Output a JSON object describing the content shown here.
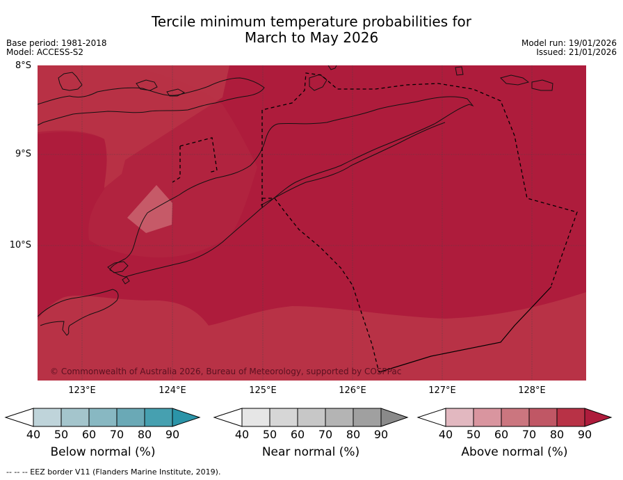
{
  "title": {
    "line1": "Tercile minimum temperature probabilities for",
    "line2": "March to May 2026"
  },
  "meta": {
    "base_period": "Base period: 1981-2018",
    "model": "Model: ACCESS-S2",
    "model_run": "Model run: 19/01/2026",
    "issued": "Issued: 21/01/2026"
  },
  "axes": {
    "lat_labels": [
      "8°S",
      "9°S",
      "10°S"
    ],
    "lon_labels": [
      "123°E",
      "124°E",
      "125°E",
      "126°E",
      "127°E",
      "128°E"
    ]
  },
  "map": {
    "copyright": "© Commonwealth of Australia 2026, Bureau of Meteorology, supported by COSPPac",
    "colors": {
      "above_80": "#b83246",
      "above_90": "#ae1c3c",
      "above_70": "#c65a68"
    }
  },
  "colorbars": [
    {
      "label": "Below normal (%)",
      "ticks": [
        "40",
        "50",
        "60",
        "70",
        "80",
        "90"
      ],
      "colors": [
        "#ffffff",
        "#bfd4da",
        "#a4c5cc",
        "#88b8c2",
        "#6aa9b6",
        "#46a0b0",
        "#2b94a8"
      ]
    },
    {
      "label": "Near normal (%)",
      "ticks": [
        "40",
        "50",
        "60",
        "70",
        "80",
        "90"
      ],
      "colors": [
        "#ffffff",
        "#e6e6e6",
        "#d6d6d6",
        "#c7c7c7",
        "#b4b4b4",
        "#a0a0a0",
        "#8a8a8a"
      ]
    },
    {
      "label": "Above normal (%)",
      "ticks": [
        "40",
        "50",
        "60",
        "70",
        "80",
        "90"
      ],
      "colors": [
        "#ffffff",
        "#e2b8c0",
        "#d9959f",
        "#cb767f",
        "#c05765",
        "#b83246",
        "#ae1c3c"
      ]
    }
  ],
  "footer": "--  --  -- EEZ border V11 (Flanders Marine Institute, 2019)."
}
